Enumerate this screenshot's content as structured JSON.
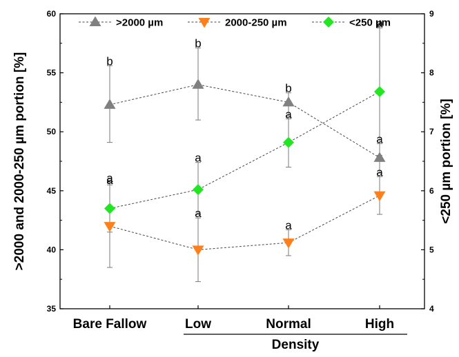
{
  "chart_data": {
    "type": "line",
    "categories": [
      "Bare Fallow",
      "Low",
      "Normal",
      "High"
    ],
    "group_label": "Density",
    "y_left": {
      "label": ">2000 and 2000-250 µm portion [%]",
      "range": [
        35,
        60
      ],
      "ticks": [
        "35",
        "40",
        "45",
        "50",
        "55",
        "60"
      ]
    },
    "y_right": {
      "label": "<250 µm portion [%]",
      "range": [
        4,
        9
      ],
      "ticks": [
        "4",
        "5",
        "6",
        "7",
        "8",
        "9"
      ]
    },
    "legend_position": "top",
    "series": [
      {
        "name": ">2000 µm",
        "axis": "left",
        "marker": "triangle-up",
        "color": "#808080",
        "values": [
          52.3,
          54.0,
          52.5,
          47.8
        ],
        "err_low": [
          49.1,
          51.0,
          51.3,
          46.5
        ],
        "err_high": [
          55.6,
          57.1,
          53.3,
          49.0
        ],
        "letters": [
          "b",
          "b",
          "b",
          "a"
        ]
      },
      {
        "name": "2000-250 µm",
        "axis": "left",
        "marker": "triangle-down",
        "color": "#FF7F1A",
        "values": [
          42.0,
          40.0,
          40.6,
          44.6
        ],
        "err_low": [
          38.5,
          37.3,
          39.5,
          43.0
        ],
        "err_high": [
          45.5,
          42.7,
          41.7,
          46.2
        ],
        "letters": [
          "a",
          "a",
          "a",
          "a"
        ]
      },
      {
        "name": "<250 µm",
        "axis": "right",
        "marker": "diamond",
        "color": "#22E622",
        "values": [
          5.7,
          6.02,
          6.82,
          7.68
        ],
        "err_low": [
          5.3,
          5.6,
          6.4,
          6.6
        ],
        "err_high": [
          6.14,
          6.48,
          7.22,
          8.76
        ],
        "letters": [
          "a",
          "a",
          "a",
          "a"
        ]
      }
    ]
  }
}
